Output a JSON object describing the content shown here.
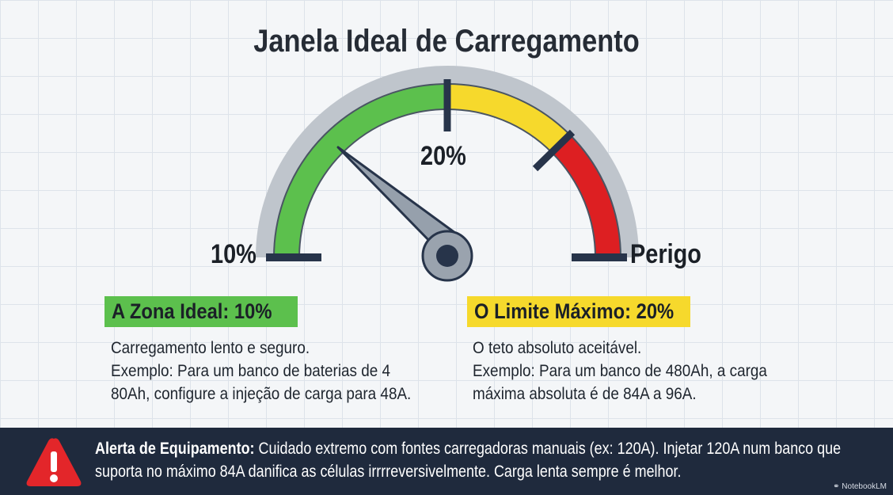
{
  "title": "Janela Ideal de Carregamento",
  "gauge": {
    "label_min": "10%",
    "label_mid": "20%",
    "label_max": "Perigo",
    "needle_value": "10%",
    "colors": {
      "green": "#5cc04d",
      "yellow": "#f6d92c",
      "red": "#dd1f22",
      "rim": "#c3c8cf",
      "dark": "#27344a"
    }
  },
  "zone_ideal": {
    "heading": "A Zona Ideal: 10%",
    "color": "#5cc04d",
    "body": "Carregamento lento e seguro.\nExemplo: Para um banco de baterias de 4\n80Ah, configure a injeção de carga para 48A."
  },
  "zone_limit": {
    "heading": "O Limite Máximo: 20%",
    "color": "#f6d92c",
    "body": "O teto absoluto aceitável.\nExemplo: Para um banco de 480Ah, a carga\nmáxima absoluta é de 84A a 96A."
  },
  "alert": {
    "icon": "warning-icon",
    "icon_color": "#e3262a",
    "label": "Alerta de Equipamento:",
    "text": " Cuidado extremo com fontes carregadoras manuais (ex: 120A). Injetar 120A num banco que suporta no máximo 84A danifica as células irrrreversivelmente. Carga lenta sempre é melhor."
  },
  "brand": "NotebookLM"
}
